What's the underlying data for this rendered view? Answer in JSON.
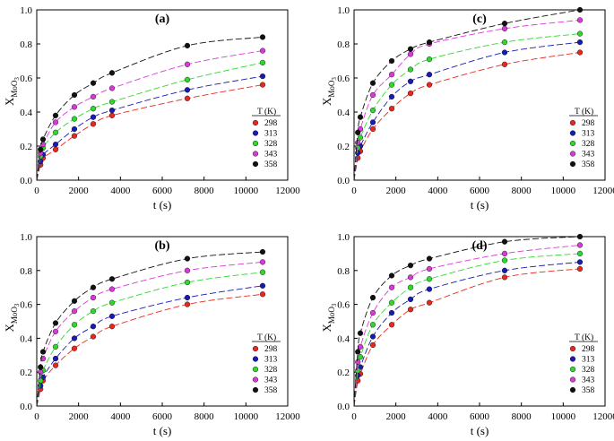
{
  "chart_data": [
    {
      "type": "scatter",
      "title": "(a)",
      "xlabel": "t (s)",
      "ylabel_main": "X",
      "ylabel_sub": "MoO",
      "ylabel_subsub": "3",
      "xlim": [
        0,
        12000
      ],
      "ylim": [
        0,
        1.0
      ],
      "xticks": [
        "0",
        "2000",
        "4000",
        "6000",
        "8000",
        "10000",
        "12000"
      ],
      "yticks": [
        "0.0",
        "0.2",
        "0.4",
        "0.6",
        "0.8",
        "1.0"
      ],
      "legend_title": "T (K)",
      "x": [
        180,
        300,
        900,
        1800,
        2700,
        3600,
        7200,
        10800
      ],
      "series": [
        {
          "name": "298",
          "color": "#e8281e",
          "values": [
            0.09,
            0.13,
            0.18,
            0.26,
            0.33,
            0.38,
            0.48,
            0.56
          ]
        },
        {
          "name": "313",
          "color": "#1a1ab4",
          "values": [
            0.11,
            0.15,
            0.21,
            0.3,
            0.37,
            0.41,
            0.53,
            0.61
          ]
        },
        {
          "name": "328",
          "color": "#2ed82e",
          "values": [
            0.14,
            0.19,
            0.28,
            0.36,
            0.42,
            0.46,
            0.59,
            0.69
          ]
        },
        {
          "name": "343",
          "color": "#d83ad8",
          "values": [
            0.16,
            0.21,
            0.34,
            0.43,
            0.49,
            0.54,
            0.68,
            0.76
          ]
        },
        {
          "name": "358",
          "color": "#111111",
          "values": [
            0.18,
            0.24,
            0.38,
            0.5,
            0.57,
            0.63,
            0.79,
            0.84
          ]
        }
      ]
    },
    {
      "type": "scatter",
      "title": "(c)",
      "xlabel": "t (s)",
      "ylabel_main": "X",
      "ylabel_sub": "MoO",
      "ylabel_subsub": "3",
      "xlim": [
        0,
        12000
      ],
      "ylim": [
        0,
        1.0
      ],
      "xticks": [
        "0",
        "2000",
        "4000",
        "6000",
        "8000",
        "10000",
        "12000"
      ],
      "yticks": [
        "0.0",
        "0.2",
        "0.4",
        "0.6",
        "0.8",
        "1.0"
      ],
      "legend_title": "T (K)",
      "x": [
        180,
        300,
        900,
        1800,
        2700,
        3600,
        7200,
        10800
      ],
      "series": [
        {
          "name": "298",
          "color": "#e8281e",
          "values": [
            0.13,
            0.17,
            0.3,
            0.42,
            0.51,
            0.56,
            0.68,
            0.75
          ]
        },
        {
          "name": "313",
          "color": "#1a1ab4",
          "values": [
            0.16,
            0.2,
            0.34,
            0.49,
            0.58,
            0.62,
            0.75,
            0.81
          ]
        },
        {
          "name": "328",
          "color": "#2ed82e",
          "values": [
            0.19,
            0.25,
            0.41,
            0.56,
            0.65,
            0.71,
            0.81,
            0.86
          ]
        },
        {
          "name": "343",
          "color": "#d83ad8",
          "values": [
            0.22,
            0.3,
            0.5,
            0.62,
            0.74,
            0.8,
            0.89,
            0.94
          ]
        },
        {
          "name": "358",
          "color": "#111111",
          "values": [
            0.28,
            0.37,
            0.57,
            0.7,
            0.77,
            0.81,
            0.92,
            1.0
          ]
        }
      ]
    },
    {
      "type": "scatter",
      "title": "(b)",
      "xlabel": "t (s)",
      "ylabel_main": "X",
      "ylabel_sub": "MoO",
      "ylabel_subsub": "3",
      "xlim": [
        0,
        12000
      ],
      "ylim": [
        0,
        1.0
      ],
      "xticks": [
        "0",
        "2000",
        "4000",
        "6000",
        "8000",
        "10000",
        "12000"
      ],
      "yticks": [
        "0.0",
        "0.2",
        "0.4",
        "0.6",
        "0.8",
        "1.0"
      ],
      "legend_title": "T (K)",
      "x": [
        180,
        300,
        900,
        1800,
        2700,
        3600,
        7200,
        10800
      ],
      "series": [
        {
          "name": "298",
          "color": "#e8281e",
          "values": [
            0.1,
            0.15,
            0.24,
            0.34,
            0.41,
            0.47,
            0.6,
            0.66
          ]
        },
        {
          "name": "313",
          "color": "#1a1ab4",
          "values": [
            0.12,
            0.17,
            0.28,
            0.4,
            0.47,
            0.53,
            0.64,
            0.71
          ]
        },
        {
          "name": "328",
          "color": "#2ed82e",
          "values": [
            0.15,
            0.21,
            0.35,
            0.48,
            0.56,
            0.61,
            0.73,
            0.79
          ]
        },
        {
          "name": "343",
          "color": "#d83ad8",
          "values": [
            0.2,
            0.28,
            0.44,
            0.56,
            0.64,
            0.69,
            0.8,
            0.85
          ]
        },
        {
          "name": "358",
          "color": "#111111",
          "values": [
            0.23,
            0.32,
            0.49,
            0.62,
            0.7,
            0.75,
            0.87,
            0.91
          ]
        }
      ]
    },
    {
      "type": "scatter",
      "title": "(d)",
      "xlabel": "t (s)",
      "ylabel_main": "X",
      "ylabel_sub": "MoO",
      "ylabel_subsub": "3",
      "xlim": [
        0,
        12000
      ],
      "ylim": [
        0,
        1.0
      ],
      "xticks": [
        "0",
        "2000",
        "4000",
        "6000",
        "8000",
        "10000",
        "12000"
      ],
      "yticks": [
        "0.0",
        "0.2",
        "0.4",
        "0.6",
        "0.8",
        "1.0"
      ],
      "legend_title": "T (K)",
      "x": [
        180,
        300,
        900,
        1800,
        2700,
        3600,
        7200,
        10800
      ],
      "series": [
        {
          "name": "298",
          "color": "#e8281e",
          "values": [
            0.15,
            0.19,
            0.36,
            0.48,
            0.57,
            0.61,
            0.76,
            0.81
          ]
        },
        {
          "name": "313",
          "color": "#1a1ab4",
          "values": [
            0.18,
            0.23,
            0.41,
            0.55,
            0.63,
            0.69,
            0.8,
            0.85
          ]
        },
        {
          "name": "328",
          "color": "#2ed82e",
          "values": [
            0.21,
            0.29,
            0.48,
            0.61,
            0.7,
            0.75,
            0.86,
            0.9
          ]
        },
        {
          "name": "343",
          "color": "#d83ad8",
          "values": [
            0.26,
            0.35,
            0.55,
            0.7,
            0.76,
            0.81,
            0.9,
            0.95
          ]
        },
        {
          "name": "358",
          "color": "#111111",
          "values": [
            0.32,
            0.43,
            0.64,
            0.77,
            0.83,
            0.87,
            0.97,
            1.0
          ]
        }
      ]
    }
  ]
}
